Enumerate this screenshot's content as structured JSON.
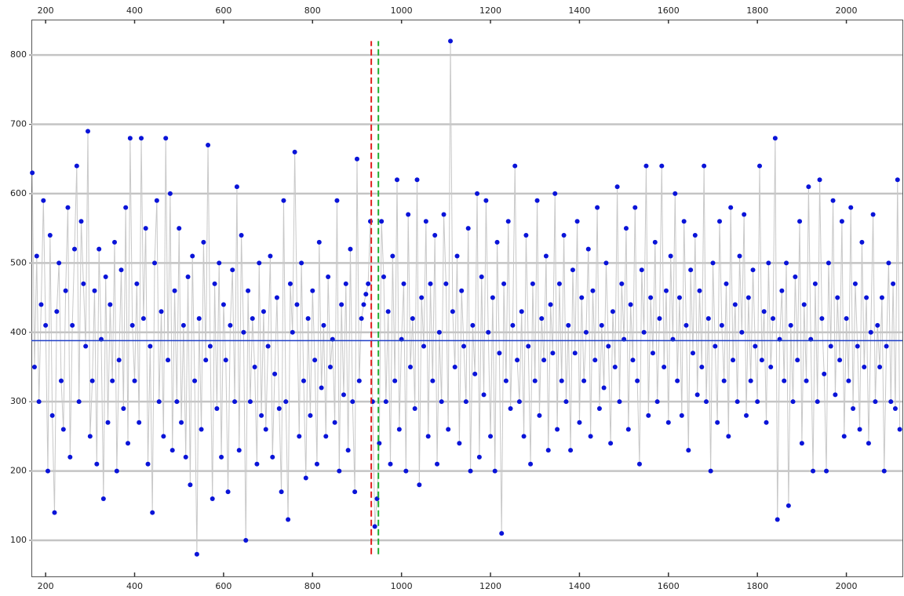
{
  "chart_data": {
    "type": "line",
    "xlim": [
      168,
      2126
    ],
    "ylim": [
      48,
      851
    ],
    "xticks": [
      200,
      400,
      600,
      800,
      1000,
      1200,
      1400,
      1600,
      1800,
      2000
    ],
    "yticks": [
      100,
      200,
      300,
      400,
      500,
      600,
      700,
      800
    ],
    "grid": true,
    "color": "#0a14d8",
    "line_color": "#c8c8c8",
    "x": [
      170,
      175,
      180,
      185,
      190,
      195,
      200,
      205,
      210,
      215,
      220,
      225,
      230,
      235,
      240,
      245,
      250,
      255,
      260,
      265,
      270,
      275,
      280,
      285,
      290,
      295,
      300,
      305,
      310,
      315,
      320,
      325,
      330,
      335,
      340,
      345,
      350,
      355,
      360,
      365,
      370,
      375,
      380,
      385,
      390,
      395,
      400,
      405,
      410,
      415,
      420,
      425,
      430,
      435,
      440,
      445,
      450,
      455,
      460,
      465,
      470,
      475,
      480,
      485,
      490,
      495,
      500,
      505,
      510,
      515,
      520,
      525,
      530,
      535,
      540,
      545,
      550,
      555,
      560,
      565,
      570,
      575,
      580,
      585,
      590,
      595,
      600,
      605,
      610,
      615,
      620,
      625,
      630,
      635,
      640,
      645,
      650,
      655,
      660,
      665,
      670,
      675,
      680,
      685,
      690,
      695,
      700,
      705,
      710,
      715,
      720,
      725,
      730,
      735,
      740,
      745,
      750,
      755,
      760,
      765,
      770,
      775,
      780,
      785,
      790,
      795,
      800,
      805,
      810,
      815,
      820,
      825,
      830,
      835,
      840,
      845,
      850,
      855,
      860,
      865,
      870,
      875,
      880,
      885,
      890,
      895,
      900,
      905,
      910,
      915,
      920,
      925,
      930,
      935,
      940,
      945,
      950,
      955,
      960,
      965,
      970,
      975,
      980,
      985,
      990,
      995,
      1000,
      1005,
      1010,
      1015,
      1020,
      1025,
      1030,
      1035,
      1040,
      1045,
      1050,
      1055,
      1060,
      1065,
      1070,
      1075,
      1080,
      1085,
      1090,
      1095,
      1100,
      1105,
      1110,
      1115,
      1120,
      1125,
      1130,
      1135,
      1140,
      1145,
      1150,
      1155,
      1160,
      1165,
      1170,
      1175,
      1180,
      1185,
      1190,
      1195,
      1200,
      1205,
      1210,
      1215,
      1220,
      1225,
      1230,
      1235,
      1240,
      1245,
      1250,
      1255,
      1260,
      1265,
      1270,
      1275,
      1280,
      1285,
      1290,
      1295,
      1300,
      1305,
      1310,
      1315,
      1320,
      1325,
      1330,
      1335,
      1340,
      1345,
      1350,
      1355,
      1360,
      1365,
      1370,
      1375,
      1380,
      1385,
      1390,
      1395,
      1400,
      1405,
      1410,
      1415,
      1420,
      1425,
      1430,
      1435,
      1440,
      1445,
      1450,
      1455,
      1460,
      1465,
      1470,
      1475,
      1480,
      1485,
      1490,
      1495,
      1500,
      1505,
      1510,
      1515,
      1520,
      1525,
      1530,
      1535,
      1540,
      1545,
      1550,
      1555,
      1560,
      1565,
      1570,
      1575,
      1580,
      1585,
      1590,
      1595,
      1600,
      1605,
      1610,
      1615,
      1620,
      1625,
      1630,
      1635,
      1640,
      1645,
      1650,
      1655,
      1660,
      1665,
      1670,
      1675,
      1680,
      1685,
      1690,
      1695,
      1700,
      1705,
      1710,
      1715,
      1720,
      1725,
      1730,
      1735,
      1740,
      1745,
      1750,
      1755,
      1760,
      1765,
      1770,
      1775,
      1780,
      1785,
      1790,
      1795,
      1800,
      1805,
      1810,
      1815,
      1820,
      1825,
      1830,
      1835,
      1840,
      1845,
      1850,
      1855,
      1860,
      1865,
      1870,
      1875,
      1880,
      1885,
      1890,
      1895,
      1900,
      1905,
      1910,
      1915,
      1920,
      1925,
      1930,
      1935,
      1940,
      1945,
      1950,
      1955,
      1960,
      1965,
      1970,
      1975,
      1980,
      1985,
      1990,
      1995,
      2000,
      2005,
      2010,
      2015,
      2020,
      2025,
      2030,
      2035,
      2040,
      2045,
      2050,
      2055,
      2060,
      2065,
      2070,
      2075,
      2080,
      2085,
      2090,
      2095,
      2100,
      2105,
      2110,
      2115,
      2120
    ],
    "values": [
      630,
      350,
      510,
      300,
      440,
      590,
      410,
      200,
      540,
      280,
      140,
      430,
      500,
      330,
      260,
      460,
      580,
      220,
      410,
      520,
      640,
      300,
      560,
      470,
      380,
      690,
      250,
      330,
      460,
      210,
      520,
      390,
      160,
      480,
      270,
      440,
      330,
      530,
      200,
      360,
      490,
      290,
      580,
      240,
      680,
      410,
      330,
      470,
      270,
      680,
      420,
      550,
      210,
      380,
      140,
      500,
      590,
      300,
      430,
      250,
      680,
      360,
      600,
      230,
      460,
      300,
      550,
      270,
      410,
      220,
      480,
      180,
      510,
      330,
      80,
      420,
      260,
      530,
      360,
      670,
      380,
      160,
      470,
      290,
      500,
      220,
      440,
      360,
      170,
      410,
      490,
      300,
      610,
      230,
      540,
      400,
      100,
      460,
      300,
      420,
      350,
      210,
      500,
      280,
      430,
      260,
      380,
      510,
      220,
      340,
      450,
      290,
      170,
      590,
      300,
      130,
      470,
      400,
      660,
      440,
      250,
      500,
      330,
      190,
      420,
      280,
      460,
      360,
      210,
      530,
      320,
      410,
      250,
      480,
      350,
      390,
      270,
      590,
      200,
      440,
      310,
      470,
      230,
      520,
      300,
      170,
      650,
      330,
      420,
      440,
      455,
      470,
      560,
      300,
      120,
      160,
      240,
      560,
      480,
      300,
      430,
      210,
      510,
      330,
      620,
      260,
      390,
      470,
      200,
      570,
      350,
      420,
      290,
      620,
      180,
      450,
      380,
      560,
      250,
      470,
      330,
      540,
      210,
      400,
      300,
      570,
      470,
      260,
      820,
      430,
      350,
      510,
      240,
      460,
      380,
      300,
      550,
      200,
      410,
      340,
      600,
      220,
      480,
      310,
      590,
      400,
      250,
      450,
      200,
      530,
      370,
      110,
      470,
      330,
      560,
      290,
      410,
      640,
      360,
      300,
      430,
      250,
      540,
      380,
      210,
      470,
      330,
      590,
      280,
      420,
      360,
      510,
      230,
      440,
      370,
      600,
      260,
      470,
      330,
      540,
      300,
      410,
      230,
      490,
      370,
      560,
      270,
      450,
      330,
      400,
      520,
      250,
      460,
      360,
      580,
      290,
      410,
      320,
      500,
      380,
      240,
      430,
      350,
      610,
      300,
      470,
      390,
      550,
      260,
      440,
      360,
      580,
      330,
      210,
      490,
      400,
      640,
      280,
      450,
      370,
      530,
      300,
      420,
      640,
      350,
      460,
      270,
      510,
      390,
      600,
      330,
      450,
      280,
      560,
      410,
      230,
      490,
      370,
      540,
      310,
      460,
      350,
      640,
      300,
      420,
      200,
      500,
      380,
      270,
      560,
      410,
      330,
      470,
      250,
      580,
      360,
      440,
      300,
      510,
      400,
      570,
      280,
      450,
      330,
      490,
      380,
      300,
      640,
      360,
      430,
      270,
      500,
      350,
      420,
      680,
      130,
      390,
      460,
      330,
      500,
      150,
      410,
      300,
      480,
      360,
      560,
      240,
      440,
      330,
      610,
      390,
      200,
      470,
      300,
      620,
      420,
      340,
      200,
      500,
      380,
      590,
      310,
      450,
      360,
      560,
      250,
      420,
      330,
      580,
      290,
      470,
      380,
      260,
      530,
      350,
      450,
      240,
      400,
      570,
      300,
      410,
      350,
      450,
      200,
      380,
      500,
      300,
      470,
      290,
      620,
      260
    ],
    "hlines": [
      {
        "value": 388,
        "color": "#1f3fc8"
      }
    ],
    "vlines": [
      {
        "value": 932,
        "from": 80,
        "to": 820,
        "color": "#e02020"
      },
      {
        "value": 948,
        "from": 80,
        "to": 820,
        "color": "#20b030"
      }
    ]
  }
}
